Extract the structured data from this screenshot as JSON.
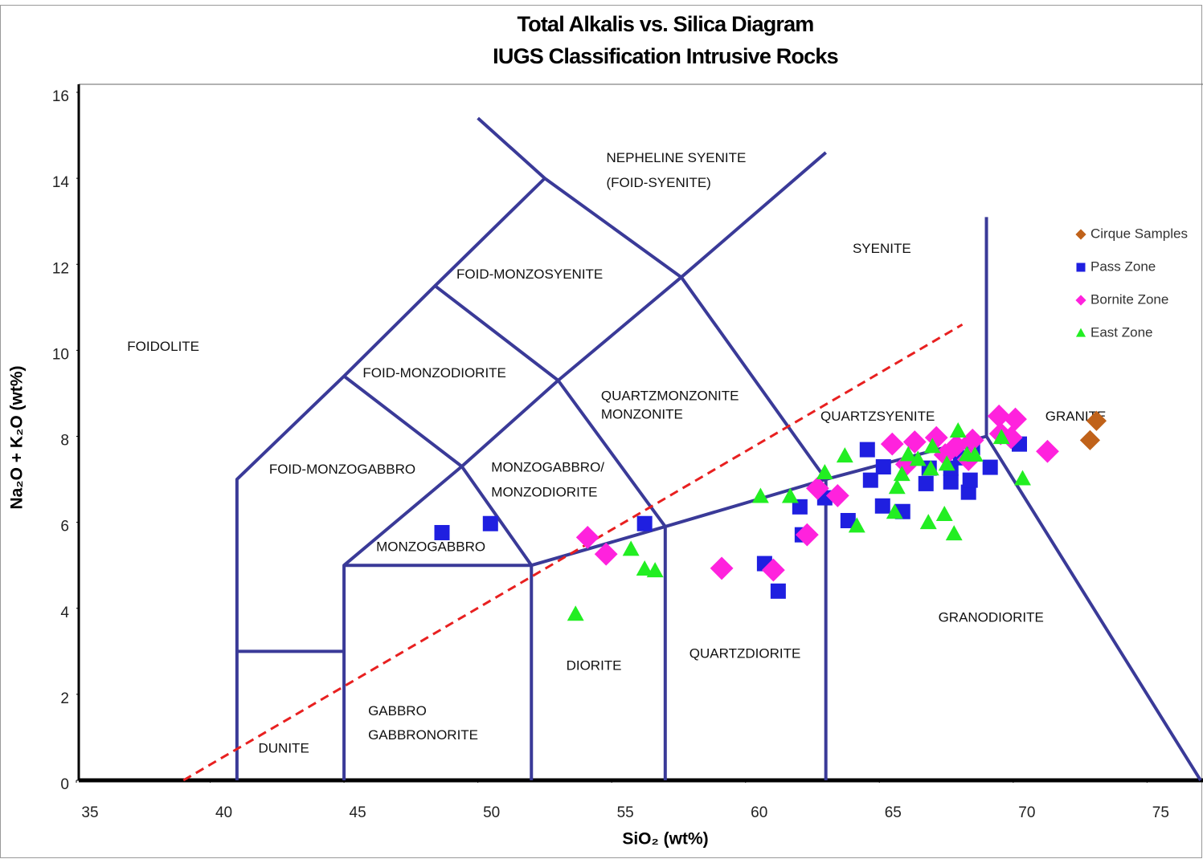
{
  "chart_data": {
    "type": "scatter",
    "title": "Total Alkalis vs. Silica Diagram",
    "subtitle": "IUGS Classification Intrusive Rocks",
    "x_label": "SiO₂ (wt%)",
    "y_label": "Na₂O + K₂O (wt%)",
    "xlim": [
      35,
      77
    ],
    "ylim": [
      0,
      16
    ],
    "xticks": [
      35,
      40,
      45,
      50,
      55,
      60,
      65,
      70,
      75
    ],
    "yticks": [
      0,
      2,
      4,
      6,
      8,
      10,
      12,
      14,
      16
    ],
    "legend": "upper right",
    "field_line_color": "#3a3a98",
    "field_lines": [
      {
        "x": [
          41,
          41,
          45,
          48.4,
          52.5
        ],
        "y": [
          0,
          7,
          9.4,
          11.5,
          14
        ]
      },
      {
        "x": [
          50,
          52.5,
          57.6,
          63
        ],
        "y": [
          15.4,
          14,
          11.7,
          7
        ]
      },
      {
        "x": [
          63,
          57.6,
          53,
          49.4,
          45,
          45
        ],
        "y": [
          14.6,
          11.7,
          9.3,
          7.3,
          5,
          0
        ]
      },
      {
        "x": [
          48.4,
          53,
          57,
          57
        ],
        "y": [
          11.5,
          9.3,
          5.9,
          0
        ]
      },
      {
        "x": [
          45,
          49.4,
          52,
          52
        ],
        "y": [
          9.4,
          7.3,
          5,
          0
        ]
      },
      {
        "x": [
          45,
          52,
          57,
          63,
          69,
          77
        ],
        "y": [
          5,
          5,
          5.9,
          7,
          8,
          0
        ]
      },
      {
        "x": [
          63,
          63
        ],
        "y": [
          7,
          0
        ]
      },
      {
        "x": [
          69,
          69
        ],
        "y": [
          13.1,
          8
        ]
      },
      {
        "x": [
          41,
          45
        ],
        "y": [
          3,
          3
        ]
      }
    ],
    "dashed_line": {
      "color": "#e82020",
      "x": [
        39,
        68.1
      ],
      "y": [
        0,
        10.6
      ]
    },
    "annotations": [
      {
        "text": "FOIDOLITE",
        "x": 36.9,
        "y": 10.07
      },
      {
        "text": "NEPHELINE SYENITE",
        "x": 54.8,
        "y": 14.46
      },
      {
        "text": "(FOID-SYENITE)",
        "x": 54.8,
        "y": 13.88
      },
      {
        "text": "FOID-MONZOSYENITE",
        "x": 49.2,
        "y": 11.75
      },
      {
        "text": "FOID-MONZODIORITE",
        "x": 45.7,
        "y": 9.46
      },
      {
        "text": "SYENITE",
        "x": 64.0,
        "y": 12.35
      },
      {
        "text": "QUARTZMONZONITE",
        "x": 54.6,
        "y": 8.92
      },
      {
        "text": "MONZONITE",
        "x": 54.6,
        "y": 8.49
      },
      {
        "text": "QUARTZSYENITE",
        "x": 62.8,
        "y": 8.45
      },
      {
        "text": "GRANITE",
        "x": 71.2,
        "y": 8.45
      },
      {
        "text": "FOID-MONZOGABBRO",
        "x": 42.2,
        "y": 7.22
      },
      {
        "text": "MONZOGABBRO/",
        "x": 50.5,
        "y": 7.26
      },
      {
        "text": "MONZODIORITE",
        "x": 50.5,
        "y": 6.68
      },
      {
        "text": "MONZOGABBRO",
        "x": 46.2,
        "y": 5.41,
        "color": "#1a1ae0"
      },
      {
        "text": "GRANODIORITE",
        "x": 67.2,
        "y": 3.77
      },
      {
        "text": "QUARTZDIORITE",
        "x": 57.9,
        "y": 2.93
      },
      {
        "text": "DIORITE",
        "x": 53.3,
        "y": 2.65
      },
      {
        "text": "GABBRO",
        "x": 45.9,
        "y": 1.6
      },
      {
        "text": "GABBRONORITE",
        "x": 45.9,
        "y": 1.04
      },
      {
        "text": "DUNITE",
        "x": 41.8,
        "y": 0.73
      }
    ],
    "series": [
      {
        "name": "Cirque Samples",
        "marker": "diamond",
        "color": "#c0621a",
        "x": [
          73.11,
          72.87
        ],
        "values": [
          8.36,
          7.91
        ]
      },
      {
        "name": "Pass Zone",
        "marker": "square",
        "color": "#1f1fe0",
        "x": [
          48.66,
          50.47,
          56.23,
          60.71,
          61.22,
          62.03,
          62.12,
          62.96,
          63.83,
          64.55,
          64.67,
          65.15,
          65.12,
          65.87,
          66.74,
          66.86,
          67.67,
          67.67,
          68.33,
          68.39,
          69.14,
          70.23,
          68.48,
          68.03
        ],
        "values": [
          5.76,
          5.97,
          5.97,
          5.04,
          4.4,
          6.36,
          5.71,
          6.57,
          6.04,
          7.69,
          6.98,
          7.29,
          6.38,
          6.25,
          6.9,
          7.26,
          6.94,
          7.26,
          6.7,
          6.98,
          7.28,
          7.82,
          7.74,
          7.5
        ]
      },
      {
        "name": "Bornite Zone",
        "marker": "diamond",
        "color": "#ff22dd",
        "x": [
          54.1,
          54.79,
          59.11,
          61.04,
          62.3,
          62.69,
          63.44,
          65.48,
          66.02,
          66.32,
          67.13,
          67.46,
          67.88,
          68.33,
          68.48,
          69.47,
          69.53,
          70.08,
          69.92,
          71.28
        ],
        "values": [
          5.65,
          5.26,
          4.93,
          4.89,
          5.71,
          6.79,
          6.62,
          7.82,
          7.35,
          7.87,
          7.97,
          7.57,
          7.78,
          7.46,
          7.91,
          8.47,
          8.06,
          8.4,
          7.97,
          7.65
        ]
      },
      {
        "name": "East Zone",
        "marker": "triangle",
        "color": "#22ee22",
        "x": [
          53.65,
          55.72,
          56.23,
          56.62,
          60.56,
          61.67,
          62.96,
          63.71,
          64.16,
          65.57,
          65.66,
          65.84,
          66.08,
          66.44,
          66.83,
          66.92,
          66.98,
          67.43,
          67.52,
          67.79,
          67.94,
          68.27,
          68.57,
          69.56,
          70.35
        ],
        "values": [
          3.86,
          5.37,
          4.91,
          4.87,
          6.6,
          6.6,
          7.15,
          7.54,
          5.91,
          6.23,
          6.81,
          7.11,
          7.57,
          7.46,
          5.99,
          7.24,
          7.76,
          6.18,
          7.35,
          5.73,
          8.12,
          7.57,
          7.56,
          7.97,
          7.01
        ]
      }
    ]
  }
}
